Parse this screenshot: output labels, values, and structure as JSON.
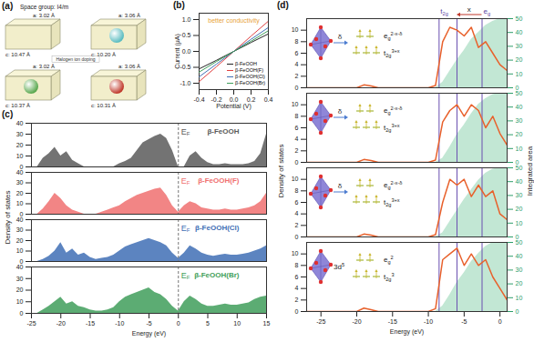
{
  "chart_data": [
    {
      "type": "diagram",
      "panel": "(a)",
      "title": "Space group: I4/m",
      "annotation": "Halogen ion doping",
      "cells": [
        {
          "a_label": "a: 3.02 Å",
          "c_label": "c: 10.47 Å",
          "color": null
        },
        {
          "a_label": "a: 3.06 Å",
          "c_label": "c: 10.20 Å",
          "color": "#5bbcc0"
        },
        {
          "a_label": "a: 3.02 Å",
          "c_label": "c: 10.37 Å",
          "color": "#5aa84f"
        },
        {
          "a_label": "a: 3.06 Å",
          "c_label": "c: 10.31 Å",
          "color": "#c0392b"
        }
      ]
    },
    {
      "type": "line",
      "panel": "(b)",
      "x_label": "Potential (V)",
      "y_label": "Current (μA)",
      "annotation": {
        "text": "better conductivity",
        "color": "#e8a33a"
      },
      "x": [
        -0.4,
        -0.2,
        0,
        0.2,
        0.4
      ],
      "xlim": [
        -0.4,
        0.4
      ],
      "xticks": [
        -0.4,
        -0.2,
        {
          "value": 0,
          "label": "0.0"
        },
        0.2,
        0.4
      ],
      "ylim": [
        -1.2,
        1.2
      ],
      "yticks": [
        {
          "value": -1,
          "label": "-1.0"
        },
        -0.5,
        {
          "value": 0,
          "label": "0.0"
        },
        0.5,
        {
          "value": 1,
          "label": "1.0"
        }
      ],
      "legend": "bottom-right",
      "series": [
        {
          "name": "β-FeOOH",
          "color": "#222222",
          "values": [
            -0.55,
            -0.28,
            0,
            0.28,
            0.55
          ]
        },
        {
          "name": "β-FeOOH(F)",
          "color": "#e04040",
          "values": [
            -0.95,
            -0.48,
            0,
            0.48,
            0.95
          ]
        },
        {
          "name": "β-FeOOH(Cl)",
          "color": "#3f6fb5",
          "values": [
            -0.8,
            -0.4,
            0,
            0.38,
            0.75
          ]
        },
        {
          "name": "β-FeOOH(Br)",
          "color": "#3f9e5a",
          "values": [
            -0.65,
            -0.32,
            0,
            0.32,
            0.65
          ]
        }
      ]
    },
    {
      "type": "area",
      "panel": "(c)",
      "x_label": "Energy (eV)",
      "y_label": "Density of states",
      "fermi_level": 0,
      "fermi_label": {
        "base": "E",
        "sub": "F"
      },
      "xlim": [
        -25,
        15
      ],
      "xticks": [
        -25,
        -20,
        -15,
        -10,
        -5,
        0,
        5,
        10,
        15
      ],
      "ylim": [
        0,
        40
      ],
      "yticks": [
        0,
        10,
        20,
        30,
        40
      ],
      "x": [
        -25,
        -24,
        -23,
        -22,
        -21,
        -20,
        -19,
        -18,
        -17,
        -16,
        -15,
        -14,
        -13,
        -12,
        -11,
        -10,
        -9,
        -8,
        -7,
        -6,
        -5,
        -4,
        -3,
        -2,
        -1,
        0,
        1,
        2,
        3,
        4,
        5,
        6,
        7,
        8,
        9,
        10,
        11,
        12,
        13,
        14,
        15
      ],
      "series": [
        {
          "name": "β-FeOOH",
          "color": "#5a5a5a",
          "values": [
            0,
            0,
            8,
            12,
            18,
            10,
            14,
            6,
            3,
            0,
            0,
            0,
            0,
            0,
            0,
            3,
            5,
            8,
            15,
            22,
            25,
            28,
            30,
            26,
            15,
            0,
            0,
            10,
            14,
            8,
            4,
            2,
            2,
            3,
            2,
            2,
            2,
            3,
            5,
            12,
            30
          ]
        },
        {
          "name": "β-FeOOH(F)",
          "color": "#f07070",
          "values": [
            0,
            0,
            5,
            12,
            20,
            15,
            8,
            4,
            2,
            0,
            0,
            0,
            2,
            4,
            6,
            8,
            12,
            15,
            18,
            20,
            22,
            24,
            25,
            18,
            8,
            2,
            8,
            12,
            10,
            6,
            5,
            4,
            4,
            5,
            4,
            4,
            5,
            6,
            8,
            12,
            20
          ]
        },
        {
          "name": "β-FeOOH(Cl)",
          "color": "#3f6fb5",
          "values": [
            0,
            0,
            2,
            5,
            10,
            18,
            8,
            12,
            6,
            8,
            4,
            2,
            3,
            4,
            6,
            10,
            14,
            16,
            18,
            20,
            22,
            20,
            18,
            15,
            8,
            3,
            8,
            15,
            12,
            8,
            6,
            5,
            6,
            7,
            6,
            6,
            7,
            8,
            10,
            12,
            15
          ]
        },
        {
          "name": "β-FeOOH(Br)",
          "color": "#3f9e5a",
          "values": [
            0,
            0,
            3,
            6,
            10,
            14,
            8,
            10,
            6,
            5,
            3,
            2,
            2,
            3,
            5,
            10,
            14,
            16,
            18,
            20,
            22,
            18,
            16,
            12,
            6,
            2,
            10,
            15,
            12,
            8,
            6,
            6,
            7,
            8,
            7,
            7,
            8,
            9,
            12,
            14,
            15
          ]
        }
      ]
    },
    {
      "type": "line",
      "panel": "(d)",
      "x_label": "Energy (eV)",
      "y_label": "Density of states",
      "y2_label": "Integrated area",
      "xlim": [
        -27,
        1
      ],
      "xticks": [
        -25,
        -20,
        -15,
        -10,
        -5,
        0
      ],
      "ylim": [
        0,
        12
      ],
      "yticks": [
        0,
        2,
        4,
        6,
        8,
        10
      ],
      "y2lim": [
        0,
        50
      ],
      "y2ticks": [
        0,
        10,
        20,
        30,
        40,
        50
      ],
      "markers": [
        {
          "value": -8.5,
          "label": {
            "base": "t",
            "sub": "2g"
          }
        },
        {
          "value": -6
        },
        {
          "value": -2.5,
          "label": {
            "base": "e",
            "sub": "g"
          }
        }
      ],
      "shift": {
        "label": "x",
        "from": -2.5,
        "to": -6
      },
      "x": [
        -27,
        -26,
        -25,
        -24,
        -23,
        -22,
        -21,
        -20,
        -19,
        -18,
        -17,
        -16,
        -15,
        -14,
        -13,
        -12,
        -11,
        -10,
        -9,
        -8,
        -7,
        -6,
        -5,
        -4,
        -3,
        -2,
        -1,
        0,
        1
      ],
      "facets": [
        {
          "orbitals": {
            "arrow_label": "δ",
            "eg": {
              "base": "e",
              "sub": "g",
              "sup": "2-x-δ"
            },
            "t2g": {
              "base": "t",
              "sub": "2g",
              "sup": "3+x"
            }
          },
          "series": [
            {
              "color": "#e8612c",
              "values": [
                0,
                0,
                0,
                0,
                0,
                0,
                0,
                0,
                0.5,
                0.3,
                0,
                0,
                0,
                0,
                0,
                0,
                0,
                0,
                0.4,
                8,
                10.5,
                10,
                9,
                10.5,
                7,
                8,
                6,
                4,
                3
              ]
            },
            {
              "type": "area",
              "axis": "y2",
              "color": "#8fd3b0",
              "values": [
                0,
                0,
                0,
                0,
                0,
                0,
                0,
                0,
                0,
                0,
                0,
                0,
                0,
                0,
                0,
                0,
                0,
                0,
                0,
                4,
                12,
                20,
                27,
                35,
                40,
                45,
                48,
                50,
                50
              ]
            }
          ]
        },
        {
          "orbitals": {
            "arrow_label": "δ",
            "eg": {
              "base": "e",
              "sub": "g",
              "sup": "2-x-δ"
            },
            "t2g": {
              "base": "t",
              "sub": "2g",
              "sup": "3+x"
            }
          },
          "series": [
            {
              "color": "#e8612c",
              "values": [
                0,
                0,
                0,
                0,
                0,
                0,
                0,
                0,
                0.5,
                0.3,
                0,
                0,
                0,
                0,
                0,
                0,
                0,
                0,
                0.4,
                7,
                9,
                10,
                8,
                10,
                9,
                6,
                8,
                5,
                3
              ]
            },
            {
              "type": "area",
              "axis": "y2",
              "color": "#8fd3b0",
              "values": [
                0,
                0,
                0,
                0,
                0,
                0,
                0,
                0,
                0,
                0,
                0,
                0,
                0,
                0,
                0,
                0,
                0,
                0,
                0,
                3,
                11,
                20,
                27,
                35,
                42,
                46,
                49,
                50,
                50
              ]
            }
          ]
        },
        {
          "orbitals": {
            "arrow_label": "δ",
            "eg": {
              "base": "e",
              "sub": "g",
              "sup": "2-x-δ"
            },
            "t2g": {
              "base": "t",
              "sub": "2g",
              "sup": "3+x"
            }
          },
          "series": [
            {
              "color": "#e8612c",
              "values": [
                0,
                0,
                0,
                0,
                0,
                0,
                0,
                0,
                0.5,
                0.3,
                0,
                0,
                0,
                0,
                0,
                0,
                0,
                0,
                0.4,
                6,
                10,
                9,
                10,
                7,
                9,
                7,
                8,
                4,
                3
              ]
            },
            {
              "type": "area",
              "axis": "y2",
              "color": "#8fd3b0",
              "values": [
                0,
                0,
                0,
                0,
                0,
                0,
                0,
                0,
                0,
                0,
                0,
                0,
                0,
                0,
                0,
                0,
                0,
                0,
                0,
                3,
                11,
                19,
                27,
                34,
                41,
                46,
                49,
                50,
                50
              ]
            }
          ]
        },
        {
          "orbitals": {
            "config": {
              "base": "3d",
              "sup": "5"
            },
            "eg": {
              "base": "e",
              "sub": "g",
              "sup": "2"
            },
            "t2g": {
              "base": "t",
              "sub": "2g",
              "sup": "3"
            }
          },
          "series": [
            {
              "color": "#e8612c",
              "values": [
                0,
                0,
                0,
                0,
                0,
                0,
                0,
                0,
                0.6,
                0.3,
                0,
                0,
                0,
                0,
                0,
                0,
                0,
                0,
                0.5,
                9,
                10,
                11,
                8,
                10,
                8,
                9,
                6,
                4,
                2
              ]
            },
            {
              "type": "area",
              "axis": "y2",
              "color": "#8fd3b0",
              "values": [
                0,
                0,
                0,
                0,
                0,
                0,
                0,
                0,
                0,
                0,
                0,
                0,
                0,
                0,
                0,
                0,
                0,
                0,
                0,
                4,
                12,
                21,
                28,
                36,
                42,
                47,
                50,
                50,
                50
              ]
            }
          ]
        }
      ]
    }
  ]
}
